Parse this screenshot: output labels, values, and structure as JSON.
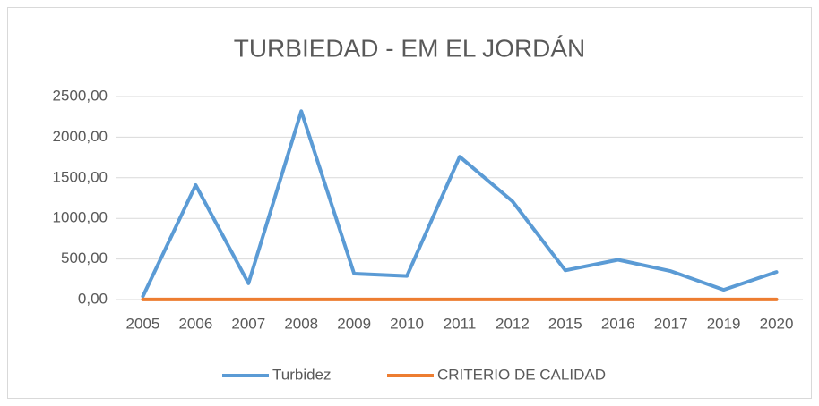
{
  "chart_data": {
    "type": "line",
    "title": "TURBIEDAD - EM EL JORDÁN",
    "categories": [
      "2005",
      "2006",
      "2007",
      "2008",
      "2009",
      "2010",
      "2011",
      "2012",
      "2015",
      "2016",
      "2017",
      "2019",
      "2020"
    ],
    "series": [
      {
        "name": "Turbidez",
        "color": "#5b9bd5",
        "values": [
          40,
          1410,
          200,
          2320,
          320,
          290,
          1760,
          1210,
          360,
          490,
          350,
          120,
          340
        ]
      },
      {
        "name": "CRITERIO DE CALIDAD",
        "color": "#ed7d31",
        "values": [
          2,
          2,
          2,
          2,
          2,
          2,
          2,
          2,
          2,
          2,
          2,
          2,
          2
        ]
      }
    ],
    "ylim": [
      0,
      2500
    ],
    "yticks": [
      {
        "value": 0,
        "label": "0,00"
      },
      {
        "value": 500,
        "label": "500,00"
      },
      {
        "value": 1000,
        "label": "1000,00"
      },
      {
        "value": 1500,
        "label": "1500,00"
      },
      {
        "value": 2000,
        "label": "2000,00"
      },
      {
        "value": 2500,
        "label": "2500,00"
      }
    ],
    "grid": true,
    "legend": "bottom"
  }
}
